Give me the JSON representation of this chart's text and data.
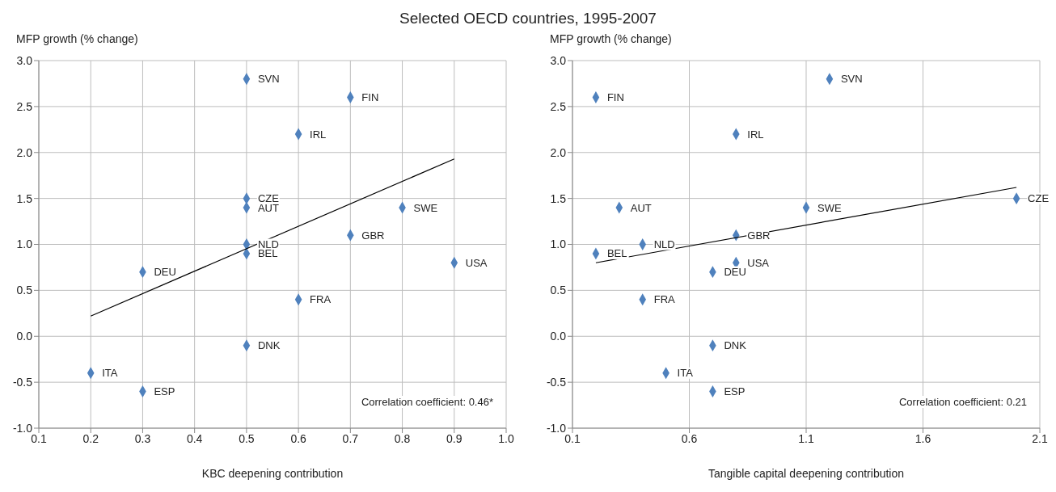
{
  "chart_data": [
    {
      "type": "scatter",
      "title": "Selected OECD countries, 1995-2007",
      "xlabel": "KBC deepening contribution",
      "ylabel": "MFP growth (% change)",
      "xlim": [
        0.1,
        1.0
      ],
      "xticks": [
        0.1,
        0.2,
        0.3,
        0.4,
        0.5,
        0.6,
        0.7,
        0.8,
        0.9,
        {
          "value": 1.0,
          "label": "1.0"
        }
      ],
      "ylim": [
        -1,
        3
      ],
      "yticks": [
        {
          "value": -1,
          "label": "-1.0"
        },
        {
          "value": -0.5,
          "label": "-0.5"
        },
        {
          "value": 0,
          "label": "0.0"
        },
        {
          "value": 0.5,
          "label": "0.5"
        },
        {
          "value": 1,
          "label": "1.0"
        },
        {
          "value": 1.5,
          "label": "1.5"
        },
        {
          "value": 2,
          "label": "2.0"
        },
        {
          "value": 2.5,
          "label": "2.5"
        },
        {
          "value": 3,
          "label": "3.0"
        }
      ],
      "grid": true,
      "legend": false,
      "marker": "diamond",
      "annotations": [
        "Correlation coefficient: 0.46*"
      ],
      "series": [
        {
          "name": "SVN",
          "color": "#4f81bd",
          "x": [
            0.5
          ],
          "values": [
            2.8
          ]
        },
        {
          "name": "FIN",
          "color": "#4f81bd",
          "x": [
            0.7
          ],
          "values": [
            2.6
          ]
        },
        {
          "name": "IRL",
          "color": "#4f81bd",
          "x": [
            0.6
          ],
          "values": [
            2.2
          ]
        },
        {
          "name": "CZE",
          "color": "#4f81bd",
          "x": [
            0.5
          ],
          "values": [
            1.5
          ]
        },
        {
          "name": "AUT",
          "color": "#4f81bd",
          "x": [
            0.5
          ],
          "values": [
            1.4
          ]
        },
        {
          "name": "SWE",
          "color": "#4f81bd",
          "x": [
            0.8
          ],
          "values": [
            1.4
          ]
        },
        {
          "name": "GBR",
          "color": "#4f81bd",
          "x": [
            0.7
          ],
          "values": [
            1.1
          ]
        },
        {
          "name": "NLD",
          "color": "#4f81bd",
          "x": [
            0.5
          ],
          "values": [
            1.0
          ]
        },
        {
          "name": "BEL",
          "color": "#4f81bd",
          "x": [
            0.5
          ],
          "values": [
            0.9
          ]
        },
        {
          "name": "DEU",
          "color": "#4f81bd",
          "x": [
            0.3
          ],
          "values": [
            0.7
          ]
        },
        {
          "name": "USA",
          "color": "#4f81bd",
          "x": [
            0.9
          ],
          "values": [
            0.8
          ]
        },
        {
          "name": "FRA",
          "color": "#4f81bd",
          "x": [
            0.6
          ],
          "values": [
            0.4
          ]
        },
        {
          "name": "DNK",
          "color": "#4f81bd",
          "x": [
            0.5
          ],
          "values": [
            -0.1
          ]
        },
        {
          "name": "ITA",
          "color": "#4f81bd",
          "x": [
            0.2
          ],
          "values": [
            -0.4
          ]
        },
        {
          "name": "ESP",
          "color": "#4f81bd",
          "x": [
            0.3
          ],
          "values": [
            -0.6
          ]
        },
        {
          "type": "line",
          "color": "#000000",
          "marker": "none",
          "x": [
            0.2,
            0.9
          ],
          "values": [
            0.22,
            1.93
          ]
        }
      ]
    },
    {
      "type": "scatter",
      "xlabel": "Tangible capital deepening contribution",
      "ylabel": "MFP growth (% change)",
      "xlim": [
        0.1,
        2.1
      ],
      "xticks": [
        0.1,
        0.6,
        1.1,
        1.6,
        2.1
      ],
      "ylim": [
        -1,
        3
      ],
      "yticks": [
        {
          "value": -1,
          "label": "-1.0"
        },
        {
          "value": -0.5,
          "label": "-0.5"
        },
        {
          "value": 0,
          "label": "0.0"
        },
        {
          "value": 0.5,
          "label": "0.5"
        },
        {
          "value": 1,
          "label": "1.0"
        },
        {
          "value": 1.5,
          "label": "1.5"
        },
        {
          "value": 2,
          "label": "2.0"
        },
        {
          "value": 2.5,
          "label": "2.5"
        },
        {
          "value": 3,
          "label": "3.0"
        }
      ],
      "grid": true,
      "legend": false,
      "marker": "diamond",
      "annotations": [
        "Correlation coefficient: 0.21"
      ],
      "series": [
        {
          "name": "SVN",
          "color": "#4f81bd",
          "x": [
            1.2
          ],
          "values": [
            2.8
          ]
        },
        {
          "name": "FIN",
          "color": "#4f81bd",
          "x": [
            0.2
          ],
          "values": [
            2.6
          ]
        },
        {
          "name": "IRL",
          "color": "#4f81bd",
          "x": [
            0.8
          ],
          "values": [
            2.2
          ]
        },
        {
          "name": "AUT",
          "color": "#4f81bd",
          "x": [
            0.3
          ],
          "values": [
            1.4
          ]
        },
        {
          "name": "SWE",
          "color": "#4f81bd",
          "x": [
            1.1
          ],
          "values": [
            1.4
          ]
        },
        {
          "name": "CZE",
          "color": "#4f81bd",
          "x": [
            2.0
          ],
          "values": [
            1.5
          ]
        },
        {
          "name": "GBR",
          "color": "#4f81bd",
          "x": [
            0.8
          ],
          "values": [
            1.1
          ]
        },
        {
          "name": "NLD",
          "color": "#4f81bd",
          "x": [
            0.4
          ],
          "values": [
            1.0
          ]
        },
        {
          "name": "BEL",
          "color": "#4f81bd",
          "x": [
            0.2
          ],
          "values": [
            0.9
          ]
        },
        {
          "name": "USA",
          "color": "#4f81bd",
          "x": [
            0.8
          ],
          "values": [
            0.8
          ]
        },
        {
          "name": "DEU",
          "color": "#4f81bd",
          "x": [
            0.7
          ],
          "values": [
            0.7
          ]
        },
        {
          "name": "FRA",
          "color": "#4f81bd",
          "x": [
            0.4
          ],
          "values": [
            0.4
          ]
        },
        {
          "name": "DNK",
          "color": "#4f81bd",
          "x": [
            0.7
          ],
          "values": [
            -0.1
          ]
        },
        {
          "name": "ITA",
          "color": "#4f81bd",
          "x": [
            0.5
          ],
          "values": [
            -0.4
          ]
        },
        {
          "name": "ESP",
          "color": "#4f81bd",
          "x": [
            0.7
          ],
          "values": [
            -0.6
          ]
        },
        {
          "type": "line",
          "color": "#000000",
          "marker": "none",
          "x": [
            0.2,
            2.0
          ],
          "values": [
            0.8,
            1.62
          ]
        }
      ]
    }
  ]
}
